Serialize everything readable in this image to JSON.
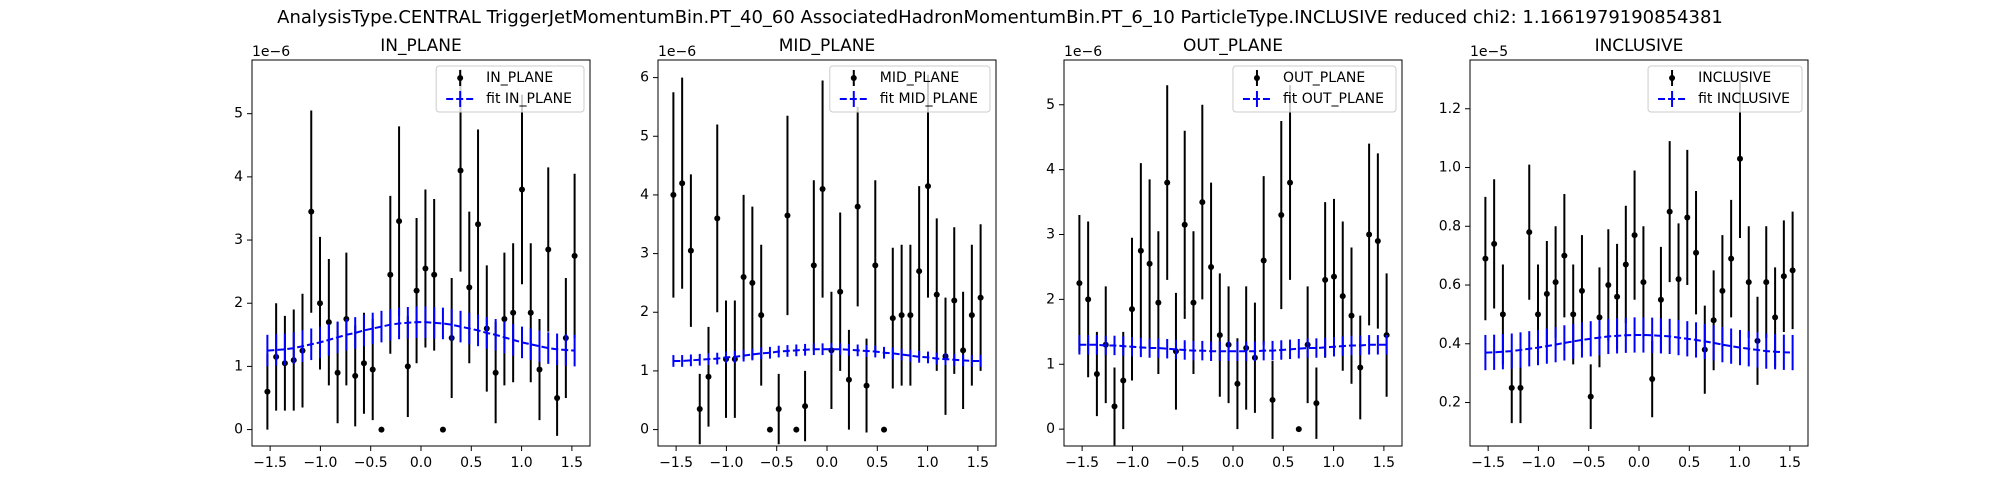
{
  "title": "AnalysisType.CENTRAL TriggerJetMomentumBin.PT_40_60 AssociatedHadronMomentumBin.PT_6_10 ParticleType.INCLUSIVE reduced chi2: 1.1661979190854381",
  "chart_data": [
    {
      "type": "errorbar",
      "title": "IN_PLANE",
      "offset_label": "1e−6",
      "legend": "upper right",
      "xlim": [
        -1.68,
        1.68
      ],
      "ylim": [
        -0.26,
        5.85
      ],
      "xticks": [
        {
          "value": -1.5,
          "label": "−1.5"
        },
        {
          "value": -1.0,
          "label": "−1.0"
        },
        {
          "value": -0.5,
          "label": "−0.5"
        },
        {
          "value": 0.0,
          "label": "0.0"
        },
        {
          "value": 0.5,
          "label": "0.5"
        },
        {
          "value": 1.0,
          "label": "1.0"
        },
        {
          "value": 1.5,
          "label": "1.5"
        }
      ],
      "yticks": [
        0,
        1,
        2,
        3,
        4,
        5
      ],
      "x": [
        -1.527,
        -1.44,
        -1.353,
        -1.265,
        -1.178,
        -1.091,
        -1.004,
        -0.916,
        -0.829,
        -0.742,
        -0.654,
        -0.567,
        -0.48,
        -0.393,
        -0.305,
        -0.218,
        -0.131,
        -0.044,
        0.044,
        0.131,
        0.218,
        0.305,
        0.393,
        0.48,
        0.567,
        0.654,
        0.742,
        0.829,
        0.916,
        1.004,
        1.091,
        1.178,
        1.265,
        1.353,
        1.44,
        1.527
      ],
      "series": [
        {
          "name": "IN_PLANE",
          "color": "#000000",
          "values": [
            0.6,
            1.15,
            1.05,
            1.1,
            1.25,
            3.45,
            2.0,
            1.7,
            0.9,
            1.75,
            0.85,
            1.05,
            0.95,
            0,
            2.45,
            3.3,
            1.0,
            2.2,
            2.55,
            2.45,
            0,
            1.45,
            4.1,
            2.25,
            3.25,
            1.6,
            0.9,
            1.75,
            1.85,
            3.8,
            1.85,
            0.95,
            2.85,
            0.5,
            1.45,
            2.75
          ],
          "errors": [
            0.6,
            0.85,
            0.75,
            0.8,
            0.9,
            1.6,
            1.05,
            1.0,
            0.8,
            1.05,
            0.8,
            0.8,
            0.8,
            0,
            1.25,
            1.5,
            0.8,
            1.15,
            1.25,
            1.2,
            0,
            0.95,
            1.6,
            1.2,
            1.5,
            1.0,
            0.8,
            1.05,
            1.1,
            1.5,
            1.1,
            0.8,
            1.3,
            0.6,
            0.95,
            1.3
          ]
        },
        {
          "name": "fit IN_PLANE",
          "color": "#0000ff",
          "values": [
            1.25,
            1.26,
            1.27,
            1.29,
            1.32,
            1.35,
            1.38,
            1.42,
            1.46,
            1.5,
            1.53,
            1.57,
            1.6,
            1.63,
            1.66,
            1.68,
            1.69,
            1.7,
            1.7,
            1.69,
            1.68,
            1.66,
            1.63,
            1.6,
            1.57,
            1.53,
            1.5,
            1.46,
            1.42,
            1.38,
            1.35,
            1.32,
            1.29,
            1.27,
            1.26,
            1.25
          ],
          "errors": [
            0.25,
            0.25,
            0.25,
            0.25,
            0.25,
            0.25,
            0.25,
            0.25,
            0.25,
            0.25,
            0.25,
            0.25,
            0.25,
            0.25,
            0.25,
            0.25,
            0.25,
            0.25,
            0.25,
            0.25,
            0.25,
            0.25,
            0.25,
            0.25,
            0.25,
            0.25,
            0.25,
            0.25,
            0.25,
            0.25,
            0.25,
            0.25,
            0.25,
            0.25,
            0.25,
            0.25
          ]
        }
      ]
    },
    {
      "type": "errorbar",
      "title": "MID_PLANE",
      "offset_label": "1e−6",
      "legend": "upper right",
      "xlim": [
        -1.68,
        1.68
      ],
      "ylim": [
        -0.28,
        6.3
      ],
      "xticks": [
        {
          "value": -1.5,
          "label": "−1.5"
        },
        {
          "value": -1.0,
          "label": "−1.0"
        },
        {
          "value": -0.5,
          "label": "−0.5"
        },
        {
          "value": 0.0,
          "label": "0.0"
        },
        {
          "value": 0.5,
          "label": "0.5"
        },
        {
          "value": 1.0,
          "label": "1.0"
        },
        {
          "value": 1.5,
          "label": "1.5"
        }
      ],
      "yticks": [
        0,
        1,
        2,
        3,
        4,
        5,
        6
      ],
      "x": [
        -1.527,
        -1.44,
        -1.353,
        -1.265,
        -1.178,
        -1.091,
        -1.004,
        -0.916,
        -0.829,
        -0.742,
        -0.654,
        -0.567,
        -0.48,
        -0.393,
        -0.305,
        -0.218,
        -0.131,
        -0.044,
        0.044,
        0.131,
        0.218,
        0.305,
        0.393,
        0.48,
        0.567,
        0.654,
        0.742,
        0.829,
        0.916,
        1.004,
        1.091,
        1.178,
        1.265,
        1.353,
        1.44,
        1.527
      ],
      "series": [
        {
          "name": "MID_PLANE",
          "color": "#000000",
          "values": [
            4.0,
            4.2,
            3.05,
            0.35,
            0.9,
            3.6,
            1.2,
            1.2,
            2.6,
            2.5,
            1.95,
            0,
            0.35,
            3.65,
            0,
            0.4,
            2.8,
            4.1,
            1.35,
            2.35,
            0.85,
            3.8,
            0.75,
            2.8,
            0,
            1.9,
            1.95,
            1.95,
            2.7,
            4.15,
            2.3,
            1.25,
            2.2,
            1.35,
            1.95,
            2.25
          ],
          "errors": [
            1.75,
            1.8,
            1.3,
            0.6,
            0.85,
            1.6,
            1.0,
            1.0,
            1.4,
            1.3,
            1.2,
            0,
            0.6,
            1.7,
            0,
            0.6,
            1.45,
            1.85,
            1.0,
            1.35,
            0.85,
            1.7,
            0.8,
            1.45,
            0,
            1.2,
            1.2,
            1.2,
            1.45,
            1.9,
            1.3,
            1.0,
            1.25,
            1.0,
            1.2,
            1.25
          ]
        },
        {
          "name": "fit MID_PLANE",
          "color": "#0000ff",
          "values": [
            1.17,
            1.17,
            1.18,
            1.19,
            1.2,
            1.21,
            1.23,
            1.24,
            1.26,
            1.28,
            1.3,
            1.31,
            1.33,
            1.34,
            1.35,
            1.36,
            1.37,
            1.37,
            1.37,
            1.37,
            1.36,
            1.35,
            1.34,
            1.33,
            1.31,
            1.3,
            1.28,
            1.26,
            1.24,
            1.23,
            1.21,
            1.2,
            1.19,
            1.18,
            1.17,
            1.17
          ],
          "errors": [
            0.1,
            0.1,
            0.1,
            0.1,
            0.1,
            0.1,
            0.1,
            0.1,
            0.1,
            0.1,
            0.1,
            0.1,
            0.1,
            0.1,
            0.1,
            0.1,
            0.1,
            0.1,
            0.1,
            0.1,
            0.1,
            0.1,
            0.1,
            0.1,
            0.1,
            0.1,
            0.1,
            0.1,
            0.1,
            0.1,
            0.1,
            0.1,
            0.1,
            0.1,
            0.1,
            0.1
          ]
        }
      ]
    },
    {
      "type": "errorbar",
      "title": "OUT_PLANE",
      "offset_label": "1e−6",
      "legend": "upper right",
      "xlim": [
        -1.68,
        1.68
      ],
      "ylim": [
        -0.26,
        5.69
      ],
      "xticks": [
        {
          "value": -1.5,
          "label": "−1.5"
        },
        {
          "value": -1.0,
          "label": "−1.0"
        },
        {
          "value": -0.5,
          "label": "−0.5"
        },
        {
          "value": 0.0,
          "label": "0.0"
        },
        {
          "value": 0.5,
          "label": "0.5"
        },
        {
          "value": 1.0,
          "label": "1.0"
        },
        {
          "value": 1.5,
          "label": "1.5"
        }
      ],
      "yticks": [
        0,
        1,
        2,
        3,
        4,
        5
      ],
      "x": [
        -1.527,
        -1.44,
        -1.353,
        -1.265,
        -1.178,
        -1.091,
        -1.004,
        -0.916,
        -0.829,
        -0.742,
        -0.654,
        -0.567,
        -0.48,
        -0.393,
        -0.305,
        -0.218,
        -0.131,
        -0.044,
        0.044,
        0.131,
        0.218,
        0.305,
        0.393,
        0.48,
        0.567,
        0.654,
        0.742,
        0.829,
        0.916,
        1.004,
        1.091,
        1.178,
        1.265,
        1.353,
        1.44,
        1.527
      ],
      "series": [
        {
          "name": "OUT_PLANE",
          "color": "#000000",
          "values": [
            2.25,
            2.0,
            0.85,
            1.3,
            0.35,
            0.75,
            1.85,
            2.75,
            2.55,
            1.95,
            3.8,
            1.2,
            3.15,
            1.95,
            3.5,
            2.5,
            1.45,
            1.3,
            0.7,
            1.25,
            1.1,
            2.6,
            0.45,
            3.3,
            3.8,
            0,
            1.3,
            0.4,
            2.3,
            2.35,
            2.05,
            1.75,
            0.95,
            3.0,
            2.9,
            1.45
          ],
          "errors": [
            1.05,
            1.2,
            0.65,
            0.9,
            0.6,
            0.75,
            1.1,
            1.35,
            1.3,
            1.1,
            1.5,
            0.9,
            1.45,
            1.1,
            1.5,
            1.3,
            0.95,
            0.9,
            0.7,
            0.95,
            0.85,
            1.3,
            0.6,
            1.45,
            1.5,
            0,
            0.9,
            0.55,
            1.2,
            1.2,
            1.15,
            1.05,
            0.8,
            1.4,
            1.35,
            0.95
          ]
        },
        {
          "name": "fit OUT_PLANE",
          "color": "#0000ff",
          "values": [
            1.3,
            1.3,
            1.3,
            1.29,
            1.29,
            1.28,
            1.27,
            1.26,
            1.25,
            1.25,
            1.24,
            1.23,
            1.22,
            1.21,
            1.21,
            1.2,
            1.2,
            1.2,
            1.2,
            1.2,
            1.2,
            1.21,
            1.21,
            1.22,
            1.23,
            1.24,
            1.25,
            1.25,
            1.26,
            1.27,
            1.28,
            1.29,
            1.29,
            1.3,
            1.3,
            1.3
          ],
          "errors": [
            0.15,
            0.15,
            0.15,
            0.15,
            0.15,
            0.15,
            0.15,
            0.15,
            0.15,
            0.15,
            0.15,
            0.15,
            0.15,
            0.15,
            0.15,
            0.15,
            0.15,
            0.15,
            0.15,
            0.15,
            0.15,
            0.15,
            0.15,
            0.15,
            0.15,
            0.15,
            0.15,
            0.15,
            0.15,
            0.15,
            0.15,
            0.15,
            0.15,
            0.15,
            0.15,
            0.15
          ]
        }
      ]
    },
    {
      "type": "errorbar",
      "title": "INCLUSIVE",
      "offset_label": "1e−5",
      "legend": "upper right",
      "xlim": [
        -1.68,
        1.68
      ],
      "ylim": [
        0.052,
        1.366
      ],
      "xticks": [
        {
          "value": -1.5,
          "label": "−1.5"
        },
        {
          "value": -1.0,
          "label": "−1.0"
        },
        {
          "value": -0.5,
          "label": "−0.5"
        },
        {
          "value": 0.0,
          "label": "0.0"
        },
        {
          "value": 0.5,
          "label": "0.5"
        },
        {
          "value": 1.0,
          "label": "1.0"
        },
        {
          "value": 1.5,
          "label": "1.5"
        }
      ],
      "yticks": [
        0.2,
        0.4,
        0.6,
        0.8,
        {
          "value": 1.0,
          "label": "1.0"
        },
        1.2
      ],
      "x": [
        -1.527,
        -1.44,
        -1.353,
        -1.265,
        -1.178,
        -1.091,
        -1.004,
        -0.916,
        -0.829,
        -0.742,
        -0.654,
        -0.567,
        -0.48,
        -0.393,
        -0.305,
        -0.218,
        -0.131,
        -0.044,
        0.044,
        0.131,
        0.218,
        0.305,
        0.393,
        0.48,
        0.567,
        0.654,
        0.742,
        0.829,
        0.916,
        1.004,
        1.091,
        1.178,
        1.265,
        1.353,
        1.44,
        1.527
      ],
      "series": [
        {
          "name": "INCLUSIVE",
          "color": "#000000",
          "values": [
            0.69,
            0.74,
            0.5,
            0.25,
            0.25,
            0.78,
            0.5,
            0.57,
            0.61,
            0.7,
            0.5,
            0.58,
            0.22,
            0.49,
            0.6,
            0.56,
            0.67,
            0.77,
            0.61,
            0.28,
            0.55,
            0.85,
            0.62,
            0.83,
            0.71,
            0.38,
            0.48,
            0.58,
            0.69,
            1.03,
            0.61,
            0.41,
            0.61,
            0.49,
            0.63,
            0.65
          ],
          "errors": [
            0.21,
            0.22,
            0.17,
            0.12,
            0.12,
            0.23,
            0.17,
            0.18,
            0.19,
            0.21,
            0.17,
            0.19,
            0.11,
            0.17,
            0.19,
            0.18,
            0.2,
            0.22,
            0.19,
            0.13,
            0.18,
            0.24,
            0.19,
            0.23,
            0.21,
            0.15,
            0.17,
            0.19,
            0.2,
            0.27,
            0.19,
            0.15,
            0.19,
            0.17,
            0.19,
            0.2
          ]
        },
        {
          "name": "fit INCLUSIVE",
          "color": "#0000ff",
          "values": [
            0.37,
            0.371,
            0.373,
            0.375,
            0.379,
            0.383,
            0.387,
            0.392,
            0.397,
            0.403,
            0.408,
            0.413,
            0.417,
            0.421,
            0.425,
            0.427,
            0.429,
            0.43,
            0.43,
            0.429,
            0.427,
            0.425,
            0.421,
            0.417,
            0.413,
            0.408,
            0.403,
            0.397,
            0.392,
            0.387,
            0.383,
            0.379,
            0.375,
            0.373,
            0.371,
            0.37
          ],
          "errors": [
            0.06,
            0.06,
            0.06,
            0.06,
            0.06,
            0.06,
            0.06,
            0.06,
            0.06,
            0.06,
            0.06,
            0.06,
            0.06,
            0.06,
            0.06,
            0.06,
            0.06,
            0.06,
            0.06,
            0.06,
            0.06,
            0.06,
            0.06,
            0.06,
            0.06,
            0.06,
            0.06,
            0.06,
            0.06,
            0.06,
            0.06,
            0.06,
            0.06,
            0.06,
            0.06,
            0.06
          ]
        }
      ]
    }
  ]
}
